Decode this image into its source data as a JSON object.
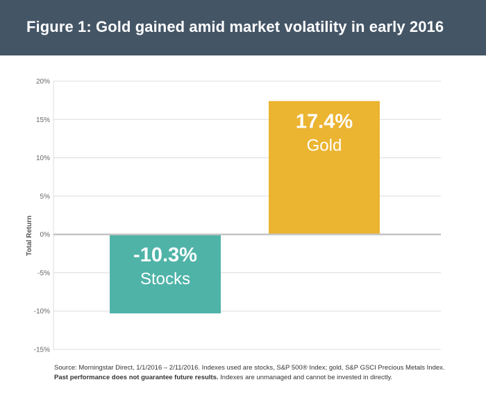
{
  "figure": {
    "title": "Figure 1: Gold gained amid market volatility in early 2016"
  },
  "chart_data": {
    "type": "bar",
    "ylabel": "Total Return",
    "ylim": [
      -15,
      20
    ],
    "yticks": [
      20,
      15,
      10,
      5,
      0,
      -5,
      -10,
      -15
    ],
    "ytick_labels": [
      "20%",
      "15%",
      "10%",
      "5%",
      "0%",
      "-5%",
      "-10%",
      "-15%"
    ],
    "grid": true,
    "categories": [
      "Stocks",
      "Gold"
    ],
    "values": [
      -10.3,
      17.4
    ],
    "value_labels": [
      "-10.3%",
      "17.4%"
    ],
    "colors": [
      "#4fb3a8",
      "#ebb431"
    ]
  },
  "footnote": {
    "line1": "Source: Morningstar Direct, 1/1/2016 – 2/11/2016. Indexes used are stocks, S&P 500® Index; gold, S&P GSCI Precious Metals Index.",
    "line2_bold": "Past performance does not guarantee future results.",
    "line2_rest": " Indexes are unmanaged and cannot be invested in directly."
  }
}
